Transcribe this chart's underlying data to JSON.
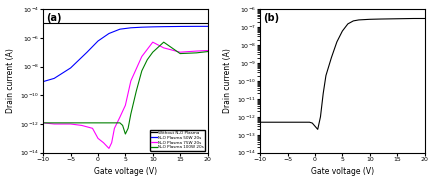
{
  "panel_a": {
    "title": "(a)",
    "xlabel": "Gate voltage (V)",
    "ylabel": "Drain current (A)",
    "xlim": [
      -10,
      20
    ],
    "ylim_log": [
      -14,
      -4
    ],
    "legend": [
      "Without N₂O Plasma",
      "N₂O Plasma 50W 20s",
      "N₂O Plasma 75W 20s",
      "N₂O Plasma 100W 20s"
    ],
    "colors": [
      "#000000",
      "#0000ff",
      "#ff00ff",
      "#008000"
    ],
    "curves": {
      "black_flat": {
        "x": [
          -10,
          20
        ],
        "y": [
          1e-05,
          1e-05
        ]
      },
      "blue": {
        "x": [
          -10,
          -8,
          -5,
          -2,
          0,
          2,
          4,
          6,
          8,
          10,
          12,
          15,
          18,
          20
        ],
        "y": [
          9e-10,
          1.5e-09,
          8e-09,
          1e-07,
          6e-07,
          2e-06,
          4e-06,
          5e-06,
          5.5e-06,
          5.8e-06,
          6e-06,
          6.2e-06,
          6.3e-06,
          6.3e-06
        ]
      },
      "magenta": {
        "x": [
          -10,
          -8,
          -5,
          -3,
          -1,
          0,
          1,
          2,
          2.5,
          3,
          4,
          5,
          6,
          8,
          10,
          12,
          15,
          18,
          20
        ],
        "y": [
          1.2e-12,
          1e-12,
          1e-12,
          8e-13,
          5e-13,
          1e-13,
          5e-14,
          2e-14,
          5e-14,
          5e-13,
          3e-12,
          2e-11,
          1e-09,
          5e-08,
          5e-07,
          2e-07,
          1e-07,
          1.2e-07,
          1.3e-07
        ]
      },
      "green": {
        "x": [
          -10,
          -8,
          -5,
          -2,
          0,
          2,
          4,
          4.5,
          5,
          5.5,
          6,
          7,
          8,
          9,
          10,
          12,
          15,
          18,
          20
        ],
        "y": [
          1.2e-12,
          1.2e-12,
          1.2e-12,
          1.2e-12,
          1.2e-12,
          1.2e-12,
          1.2e-12,
          8e-13,
          2e-13,
          5e-13,
          5e-12,
          2e-10,
          5e-09,
          3e-08,
          1e-07,
          5e-07,
          8e-08,
          9e-08,
          1.1e-07
        ]
      }
    }
  },
  "panel_b": {
    "title": "(b)",
    "xlabel": "Gate voltage (V)",
    "ylabel": "Drain current (A)",
    "xlim": [
      -10,
      20
    ],
    "ylim_log": [
      -14,
      -6
    ],
    "curve": {
      "x": [
        -10,
        -8,
        -5,
        -3,
        -1,
        -0.5,
        0,
        0.5,
        1,
        1.5,
        2,
        3,
        4,
        5,
        6,
        7,
        8,
        9,
        10,
        12,
        15,
        18,
        20
      ],
      "y": [
        5e-13,
        5e-13,
        5e-13,
        5e-13,
        5e-13,
        4.5e-13,
        3e-13,
        2e-13,
        1e-12,
        2e-11,
        2e-10,
        2e-09,
        1.5e-08,
        6e-08,
        1.5e-07,
        2.2e-07,
        2.5e-07,
        2.6e-07,
        2.7e-07,
        2.8e-07,
        2.9e-07,
        3e-07,
        3e-07
      ]
    },
    "color": "#000000"
  },
  "figure_bg": "#ffffff",
  "axes_bg": "#ffffff"
}
